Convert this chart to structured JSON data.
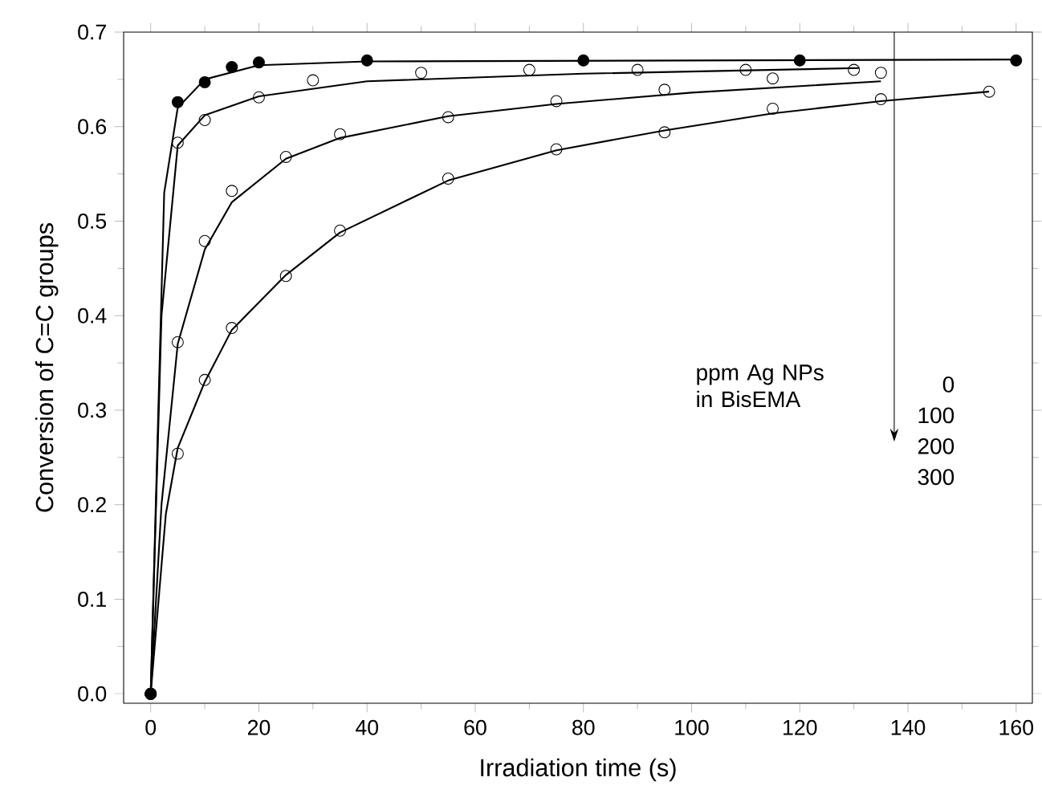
{
  "chart_data": {
    "type": "scatter",
    "xlabel": "Irradiation time (s)",
    "ylabel": "Conversion of C=C groups",
    "xlim": [
      -5,
      163
    ],
    "ylim": [
      -0.01,
      0.7
    ],
    "xticks": [
      0,
      20,
      40,
      60,
      80,
      100,
      120,
      140,
      160
    ],
    "yticks": [
      {
        "value": 0,
        "label": "0.0"
      },
      0.1,
      0.2,
      0.3,
      0.4,
      0.5,
      0.6,
      0.7
    ],
    "marker": "circle",
    "annotations": [
      "ppm Ag NPs in BisEMA",
      "0",
      "100",
      "200",
      "300"
    ],
    "series": [
      {
        "color": "#000000",
        "x": [
          0,
          5,
          10,
          15,
          20,
          40,
          80,
          120,
          160
        ],
        "values": [
          0,
          0.626,
          0.647,
          0.663,
          0.668,
          0.67,
          0.67,
          0.67,
          0.67
        ]
      },
      {
        "color": "#000000",
        "x": [
          0,
          5,
          10,
          20,
          30,
          50,
          70,
          90,
          110,
          130
        ],
        "values": [
          0,
          0.583,
          0.607,
          0.631,
          0.649,
          0.657,
          0.66,
          0.66,
          0.66,
          0.66
        ]
      },
      {
        "color": "#000000",
        "x": [
          0,
          5,
          10,
          15,
          25,
          35,
          55,
          75,
          95,
          115,
          135
        ],
        "values": [
          0,
          0.372,
          0.479,
          0.532,
          0.568,
          0.592,
          0.61,
          0.627,
          0.639,
          0.651,
          0.657
        ]
      },
      {
        "color": "#000000",
        "x": [
          0,
          5,
          10,
          15,
          25,
          35,
          55,
          75,
          95,
          115,
          135,
          155
        ],
        "values": [
          0,
          0.254,
          0.332,
          0.387,
          0.442,
          0.49,
          0.545,
          0.576,
          0.594,
          0.619,
          0.629,
          0.637
        ]
      },
      {
        "type": "line",
        "color": "#000000",
        "marker": "none",
        "x": [
          0,
          2.5,
          5,
          10,
          20,
          40,
          160
        ],
        "values": [
          0,
          0.53,
          0.62,
          0.65,
          0.665,
          0.669,
          0.671
        ]
      },
      {
        "type": "line",
        "color": "#000000",
        "marker": "none",
        "x": [
          0,
          2,
          5,
          10,
          20,
          40,
          80,
          131
        ],
        "values": [
          0,
          0.4,
          0.58,
          0.612,
          0.632,
          0.648,
          0.656,
          0.662
        ]
      },
      {
        "type": "line",
        "color": "#000000",
        "marker": "none",
        "x": [
          0,
          2,
          5,
          10,
          15,
          25,
          35,
          55,
          75,
          100,
          135
        ],
        "values": [
          0,
          0.2,
          0.37,
          0.47,
          0.52,
          0.566,
          0.588,
          0.611,
          0.624,
          0.636,
          0.648
        ]
      },
      {
        "type": "line",
        "color": "#000000",
        "marker": "none",
        "x": [
          0,
          2.8,
          5,
          10,
          15,
          25,
          35,
          55,
          75,
          95,
          115,
          135,
          155
        ],
        "values": [
          0,
          0.19,
          0.26,
          0.33,
          0.385,
          0.443,
          0.488,
          0.543,
          0.575,
          0.596,
          0.614,
          0.627,
          0.637
        ]
      }
    ]
  }
}
